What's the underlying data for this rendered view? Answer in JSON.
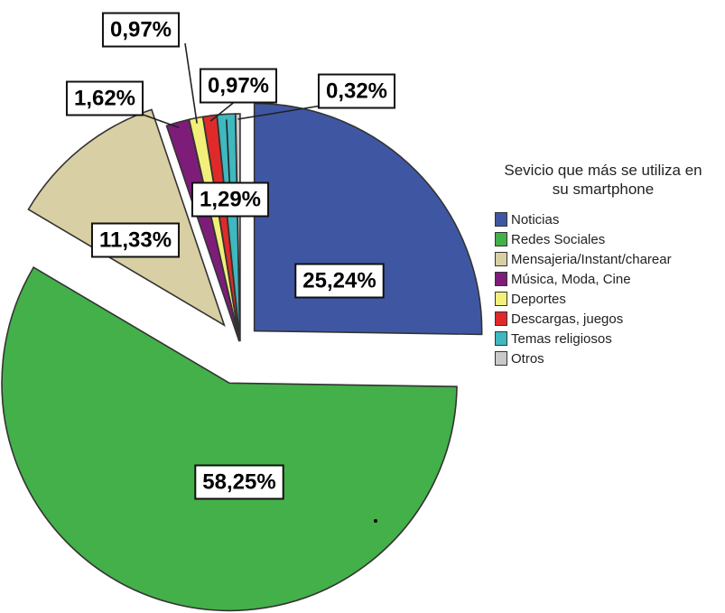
{
  "chart_data": {
    "type": "pie",
    "legend_title": "Sevicio que más se utiliza en su smartphone",
    "legend_position": "right",
    "slices": [
      {
        "name": "Noticias",
        "value": 25.24,
        "label": "25,24%",
        "color": "#3f57a3"
      },
      {
        "name": "Redes Sociales",
        "value": 58.25,
        "label": "58,25%",
        "color": "#43b049"
      },
      {
        "name": "Mensajeria/Instant/charear",
        "value": 11.33,
        "label": "11,33%",
        "color": "#d8d0a4"
      },
      {
        "name": "Música, Moda, Cine",
        "value": 1.62,
        "label": "1,62%",
        "color": "#7d1d79"
      },
      {
        "name": "Deportes",
        "value": 0.97,
        "label": "0,97%",
        "color": "#f2ef7a"
      },
      {
        "name": "Descargas, juegos",
        "value": 0.97,
        "label": "0,97%",
        "color": "#e02a2a"
      },
      {
        "name": "Temas religiosos",
        "value": 1.29,
        "label": "1,29%",
        "color": "#3fb8bf"
      },
      {
        "name": "Otros",
        "value": 0.32,
        "label": "0,32%",
        "color": "#c9c9c9"
      }
    ]
  }
}
